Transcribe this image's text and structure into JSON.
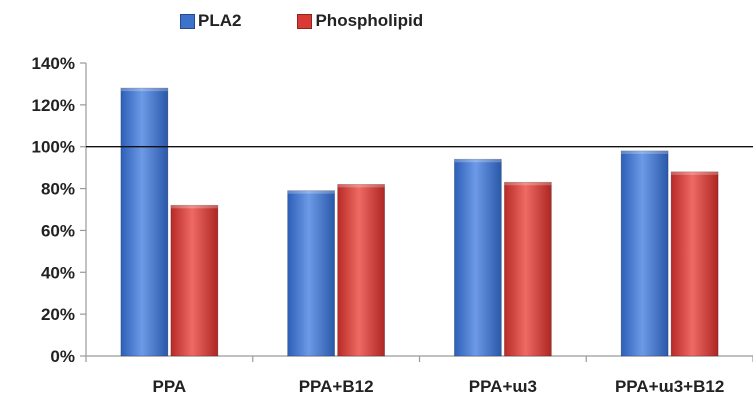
{
  "chart_data": {
    "type": "bar",
    "categories": [
      "PPA",
      "PPA+B12",
      "PPA+ɯ3",
      "PPA+ɯ3+B12"
    ],
    "series": [
      {
        "name": "PLA2",
        "values": [
          128,
          79,
          94,
          98
        ],
        "color": "#3d72cc"
      },
      {
        "name": "Phospholipid",
        "values": [
          72,
          82,
          83,
          88
        ],
        "color": "#d93a36"
      }
    ],
    "ylim": [
      0,
      140
    ],
    "yticks": [
      0,
      20,
      40,
      60,
      80,
      100,
      120,
      140
    ],
    "ytick_labels": [
      "0%",
      "20%",
      "40%",
      "60%",
      "80%",
      "100%",
      "120%",
      "140%"
    ],
    "reference_line": 100,
    "legend_position": "top",
    "grid": false
  }
}
